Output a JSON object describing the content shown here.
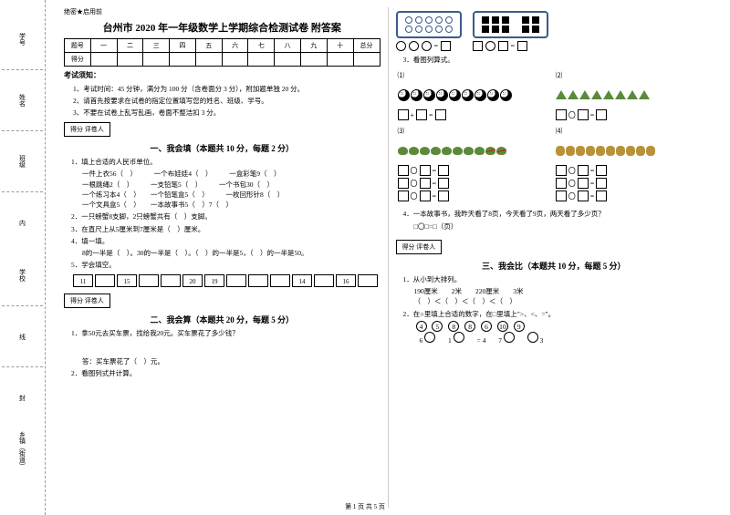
{
  "binding": {
    "items": [
      "学号",
      "姓名",
      "班级",
      "学校",
      "乡镇（街道）"
    ],
    "hints": [
      "内",
      "线",
      "封",
      "密"
    ]
  },
  "secret": "绝密★启用前",
  "title": "台州市 2020 年一年级数学上学期综合检测试卷 附答案",
  "score_headers": [
    "题号",
    "一",
    "二",
    "三",
    "四",
    "五",
    "六",
    "七",
    "八",
    "九",
    "十",
    "总分"
  ],
  "score_row": "得分",
  "notice_title": "考试须知：",
  "notices": [
    "1、考试时间：45 分钟，满分为 100 分（含卷面分 3 分），附加题单独 20 分。",
    "2、请首先按要求在试卷的指定位置填写您的姓名、班级、学号。",
    "3、不要在试卷上乱写乱画，卷面不整洁扣 3 分。"
  ],
  "scorebox": {
    "score": "得分",
    "marker": "评卷人"
  },
  "sections": {
    "s1": "一、我会填（本题共 10 分，每题 2 分）",
    "s2": "二、我会算（本题共 20 分，每题 5 分）",
    "s3": "三、我会比（本题共 10 分，每题 5 分）"
  },
  "q1": {
    "stem": "1．填上合适的人民币单位。",
    "lines": [
      "一件上衣56（　）　　　一个布娃娃4（　）　　　一盒彩笔9（　）",
      "一根跳绳2（　）　　　一支铅笔5（　）　　　一个书包30（　）",
      "一个练习本4（　）　　一个铅笔盒5（　）　　　一枚回形针8（　）",
      "一个文具盒5（　）　　一本故事书5（　）7（　）"
    ]
  },
  "q2": "2．一只螃蟹8支脚，2只螃蟹共有（　）支脚。",
  "q3": "3．在直尺上从5厘米到7厘米是（　）厘米。",
  "q4": {
    "stem": "4．填一填。",
    "line": "8的一半是（　）。30的一半是（　）。（　）的一半是5，（　）的一半是50。"
  },
  "q5": "5．学会填空。",
  "nums": [
    "11",
    "",
    "15",
    "",
    "",
    "20",
    "19",
    "",
    "",
    "",
    "14",
    "",
    "16",
    ""
  ],
  "q2_1": {
    "stem": "1．拿50元去买车票，找给我20元。买车票花了多少钱？",
    "ans": "答：买车票花了（　）元。"
  },
  "q2_2": "2．看图列式并计算。",
  "right": {
    "q3_top": "3．看图列算式。",
    "pic_labels": [
      "⑴",
      "⑵",
      "⑶",
      "⑷"
    ],
    "q4": "4．一本故事书，我昨天看了8页，今天看了9页，两天看了多少页？",
    "q4_eq": "□〇□=□（页）",
    "q3_1": {
      "stem": "1．从小到大排列。",
      "line1": "190厘米　　2米　　220厘米　　3米",
      "line2": "（　）＜（　）＜（　）＜（　）"
    },
    "q3_2": {
      "stem": "2．在○里填上合适的数字，在□里填上\">、<、=\"。",
      "r1": [
        "4",
        "5",
        "8",
        "8",
        "6",
        "10",
        "9"
      ],
      "r2": [
        "6 >",
        "1 <",
        "= 4",
        "7 >",
        "> 3"
      ]
    }
  },
  "footer": "第 1 页 共 5 页"
}
